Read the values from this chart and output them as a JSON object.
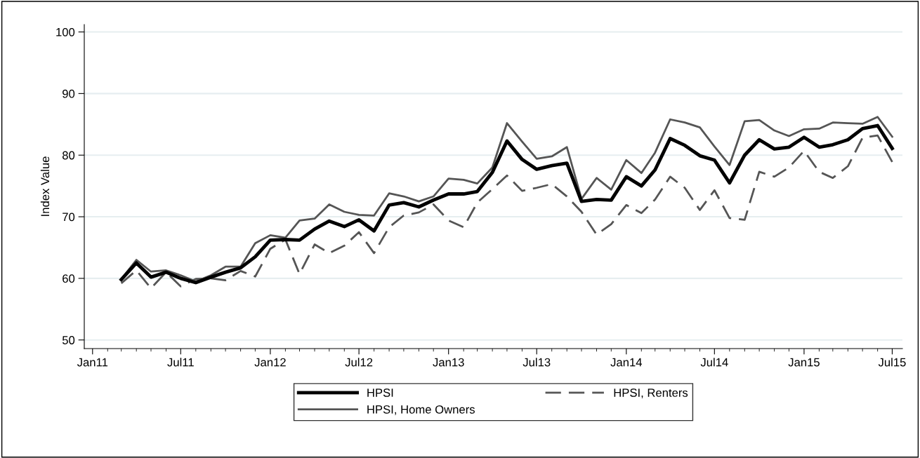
{
  "chart_data": {
    "type": "line",
    "ylabel": "Index Value",
    "x": [
      "2011-03",
      "2011-04",
      "2011-05",
      "2011-06",
      "2011-07",
      "2011-08",
      "2011-09",
      "2011-10",
      "2011-11",
      "2011-12",
      "2012-01",
      "2012-02",
      "2012-03",
      "2012-04",
      "2012-05",
      "2012-06",
      "2012-07",
      "2012-08",
      "2012-09",
      "2012-10",
      "2012-11",
      "2012-12",
      "2013-01",
      "2013-02",
      "2013-03",
      "2013-04",
      "2013-05",
      "2013-06",
      "2013-07",
      "2013-08",
      "2013-09",
      "2013-10",
      "2013-11",
      "2013-12",
      "2014-01",
      "2014-02",
      "2014-03",
      "2014-04",
      "2014-05",
      "2014-06",
      "2014-07",
      "2014-08",
      "2014-09",
      "2014-10",
      "2014-11",
      "2014-12",
      "2015-01",
      "2015-02",
      "2015-03",
      "2015-04",
      "2015-05",
      "2015-06",
      "2015-07"
    ],
    "series": [
      {
        "name": "HPSI",
        "color": "#000000",
        "line_style": "solid",
        "values": [
          59.8,
          62.5,
          60.2,
          61.0,
          60.0,
          59.3,
          60.2,
          61.0,
          61.7,
          63.5,
          66.2,
          66.3,
          66.2,
          68.0,
          69.3,
          68.4,
          69.5,
          67.7,
          71.9,
          72.3,
          71.6,
          72.7,
          73.7,
          73.7,
          74.1,
          77.2,
          82.3,
          79.3,
          77.7,
          78.3,
          78.7,
          72.5,
          72.8,
          72.7,
          76.5,
          75.0,
          77.6,
          82.7,
          81.6,
          79.9,
          79.2,
          75.5,
          80.0,
          82.5,
          81.0,
          81.3,
          82.9,
          81.3,
          81.7,
          82.5,
          84.3,
          84.8,
          81.1
        ]
      },
      {
        "name": "HPSI, Home Owners",
        "color": "#555555",
        "line_style": "solid",
        "values": [
          59.9,
          63.0,
          61.1,
          61.3,
          60.5,
          59.5,
          60.5,
          61.9,
          61.9,
          65.7,
          67.0,
          66.6,
          69.4,
          69.7,
          72.0,
          70.8,
          70.3,
          70.2,
          73.8,
          73.3,
          72.5,
          73.3,
          76.2,
          76.0,
          75.4,
          78.0,
          85.2,
          82.2,
          79.4,
          79.8,
          81.3,
          72.9,
          76.3,
          74.4,
          79.2,
          77.1,
          80.4,
          85.8,
          85.3,
          84.5,
          81.4,
          78.4,
          85.5,
          85.7,
          84.0,
          83.1,
          84.2,
          84.3,
          85.3,
          85.2,
          85.1,
          86.2,
          83.0
        ]
      },
      {
        "name": "HPSI, Renters",
        "color": "#555555",
        "line_style": "dashed",
        "values": [
          59.2,
          61.3,
          58.4,
          61.0,
          58.7,
          59.9,
          60.0,
          59.7,
          61.2,
          60.3,
          64.8,
          66.3,
          60.7,
          65.5,
          64.1,
          65.3,
          67.5,
          64.1,
          68.3,
          70.2,
          70.7,
          72.0,
          69.4,
          68.3,
          72.3,
          74.5,
          76.7,
          74.2,
          74.7,
          75.3,
          73.3,
          70.8,
          67.1,
          68.8,
          71.9,
          70.6,
          72.8,
          76.5,
          74.7,
          71.1,
          74.3,
          69.8,
          69.5,
          77.3,
          76.5,
          78.0,
          80.7,
          77.3,
          76.3,
          78.2,
          82.8,
          83.2,
          78.9
        ]
      }
    ],
    "xlim": [
      "2010-12-15",
      "2015-07-22"
    ],
    "xticks": [
      {
        "value": "2011-01",
        "label": "Jan11"
      },
      {
        "value": "2011-07",
        "label": "Jul11"
      },
      {
        "value": "2012-01",
        "label": "Jan12"
      },
      {
        "value": "2012-07",
        "label": "Jul12"
      },
      {
        "value": "2013-01",
        "label": "Jan13"
      },
      {
        "value": "2013-07",
        "label": "Jul13"
      },
      {
        "value": "2014-01",
        "label": "Jan14"
      },
      {
        "value": "2014-07",
        "label": "Jul14"
      },
      {
        "value": "2015-01",
        "label": "Jan15"
      },
      {
        "value": "2015-07",
        "label": "Jul15"
      }
    ],
    "ylim": [
      48.6,
      101.2
    ],
    "yticks": [
      50,
      60,
      70,
      80,
      90,
      100
    ],
    "grid": "y",
    "legend": "bottom",
    "marker": "none"
  }
}
